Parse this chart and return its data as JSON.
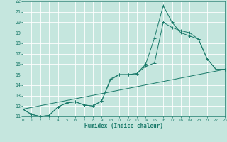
{
  "xlabel": "Humidex (Indice chaleur)",
  "xlim": [
    0,
    23
  ],
  "ylim": [
    11,
    22
  ],
  "xticks": [
    0,
    1,
    2,
    3,
    4,
    5,
    6,
    7,
    8,
    9,
    10,
    11,
    12,
    13,
    14,
    15,
    16,
    17,
    18,
    19,
    20,
    21,
    22,
    23
  ],
  "yticks": [
    11,
    12,
    13,
    14,
    15,
    16,
    17,
    18,
    19,
    20,
    21,
    22
  ],
  "bg_color": "#c5e6de",
  "grid_color": "#ffffff",
  "line_color": "#1a7a6a",
  "line1_x": [
    0,
    1,
    2,
    3,
    4,
    5,
    6,
    7,
    8,
    9,
    10,
    11,
    12,
    13,
    14,
    15,
    16,
    17,
    18,
    19,
    20,
    21,
    22,
    23
  ],
  "line1_y": [
    11.7,
    11.2,
    11.0,
    11.1,
    11.9,
    12.3,
    12.4,
    12.1,
    12.0,
    12.5,
    14.6,
    15.0,
    15.0,
    15.1,
    16.0,
    18.5,
    21.6,
    20.0,
    19.0,
    18.7,
    18.4,
    16.5,
    15.5,
    15.5
  ],
  "line2_x": [
    0,
    1,
    2,
    3,
    4,
    5,
    6,
    7,
    8,
    9,
    10,
    11,
    12,
    13,
    14,
    15,
    16,
    17,
    18,
    19,
    20,
    21,
    22,
    23
  ],
  "line2_y": [
    11.7,
    11.2,
    11.0,
    11.1,
    11.9,
    12.3,
    12.4,
    12.1,
    12.0,
    12.5,
    14.5,
    15.0,
    15.0,
    15.1,
    15.8,
    16.1,
    20.0,
    19.5,
    19.2,
    19.0,
    18.4,
    16.5,
    15.5,
    15.5
  ],
  "line3_x": [
    0,
    23
  ],
  "line3_y": [
    11.7,
    15.5
  ]
}
